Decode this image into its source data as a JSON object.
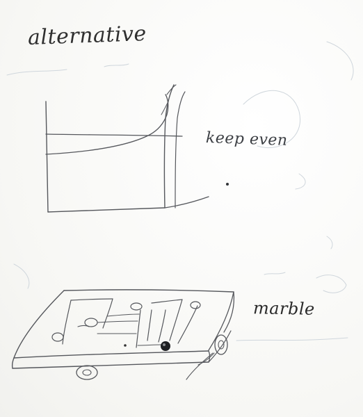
{
  "labels": {
    "title": "alternative",
    "note": "keep even",
    "caption": "marble"
  }
}
